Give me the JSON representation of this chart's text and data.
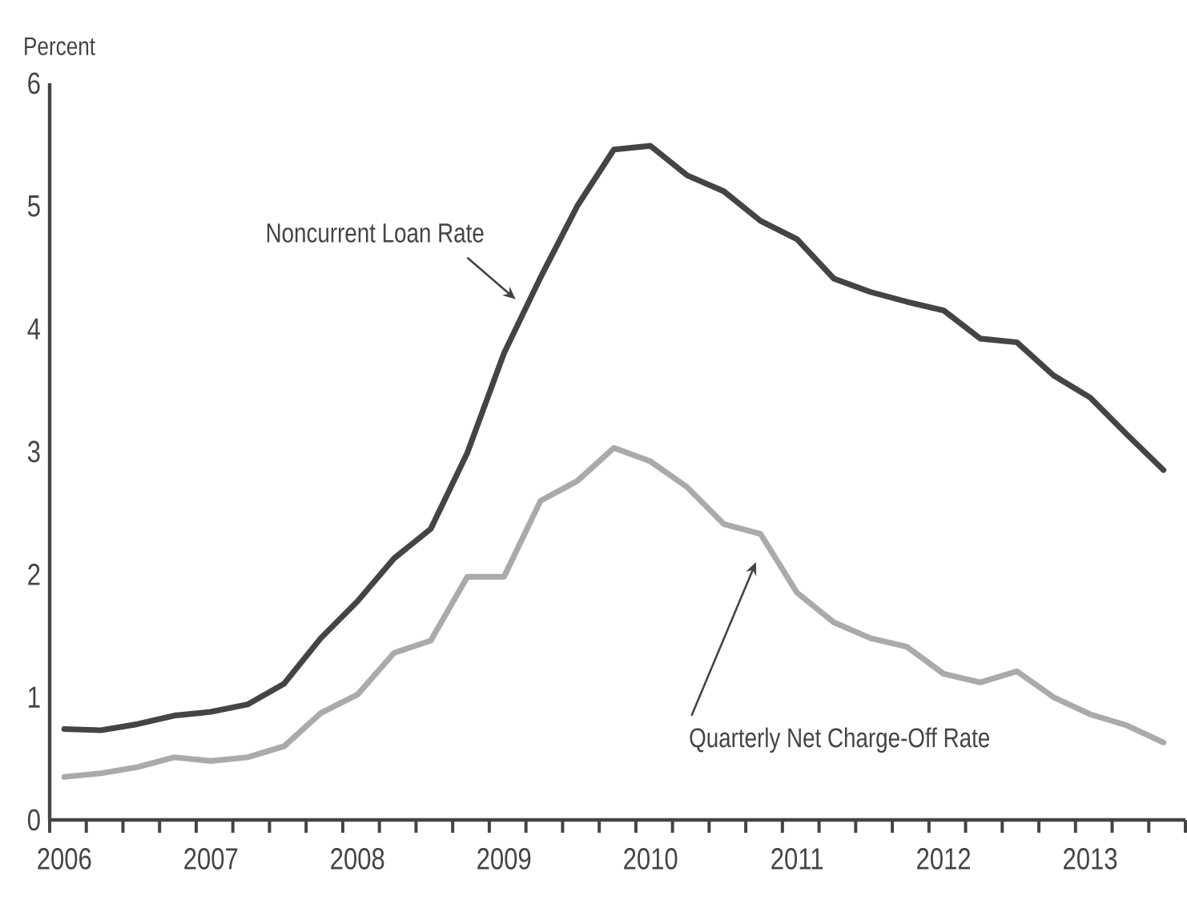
{
  "chart_data": {
    "type": "line",
    "ylabel": "Percent",
    "x": [
      2006.0,
      2006.25,
      2006.5,
      2006.75,
      2007.0,
      2007.25,
      2007.5,
      2007.75,
      2008.0,
      2008.25,
      2008.5,
      2008.75,
      2009.0,
      2009.25,
      2009.5,
      2009.75,
      2010.0,
      2010.25,
      2010.5,
      2010.75,
      2011.0,
      2011.25,
      2011.5,
      2011.75,
      2012.0,
      2012.25,
      2012.5,
      2012.75,
      2013.0,
      2013.25,
      2013.5
    ],
    "series": [
      {
        "name": "Noncurrent Loan Rate",
        "color": "#444444",
        "values": [
          0.74,
          0.73,
          0.78,
          0.85,
          0.88,
          0.94,
          1.11,
          1.48,
          1.78,
          2.13,
          2.37,
          2.99,
          3.8,
          4.42,
          5.0,
          5.46,
          5.49,
          5.25,
          5.12,
          4.88,
          4.73,
          4.41,
          4.3,
          4.22,
          4.15,
          3.92,
          3.89,
          3.62,
          3.44,
          3.14,
          2.85
        ]
      },
      {
        "name": "Quarterly Net Charge-Off Rate",
        "color": "#aaaaaa",
        "values": [
          0.35,
          0.38,
          0.43,
          0.51,
          0.48,
          0.51,
          0.6,
          0.87,
          1.02,
          1.36,
          1.46,
          1.98,
          1.98,
          2.6,
          2.76,
          3.03,
          2.92,
          2.71,
          2.41,
          2.33,
          1.85,
          1.61,
          1.48,
          1.41,
          1.19,
          1.12,
          1.21,
          1.0,
          0.86,
          0.77,
          0.63
        ]
      }
    ],
    "xlim": [
      2005.9,
      2013.65
    ],
    "xticks": [
      2006,
      2007,
      2008,
      2009,
      2010,
      2011,
      2012,
      2013
    ],
    "ylim": [
      0,
      6
    ],
    "yticks": [
      0,
      1,
      2,
      3,
      4,
      5,
      6
    ]
  }
}
